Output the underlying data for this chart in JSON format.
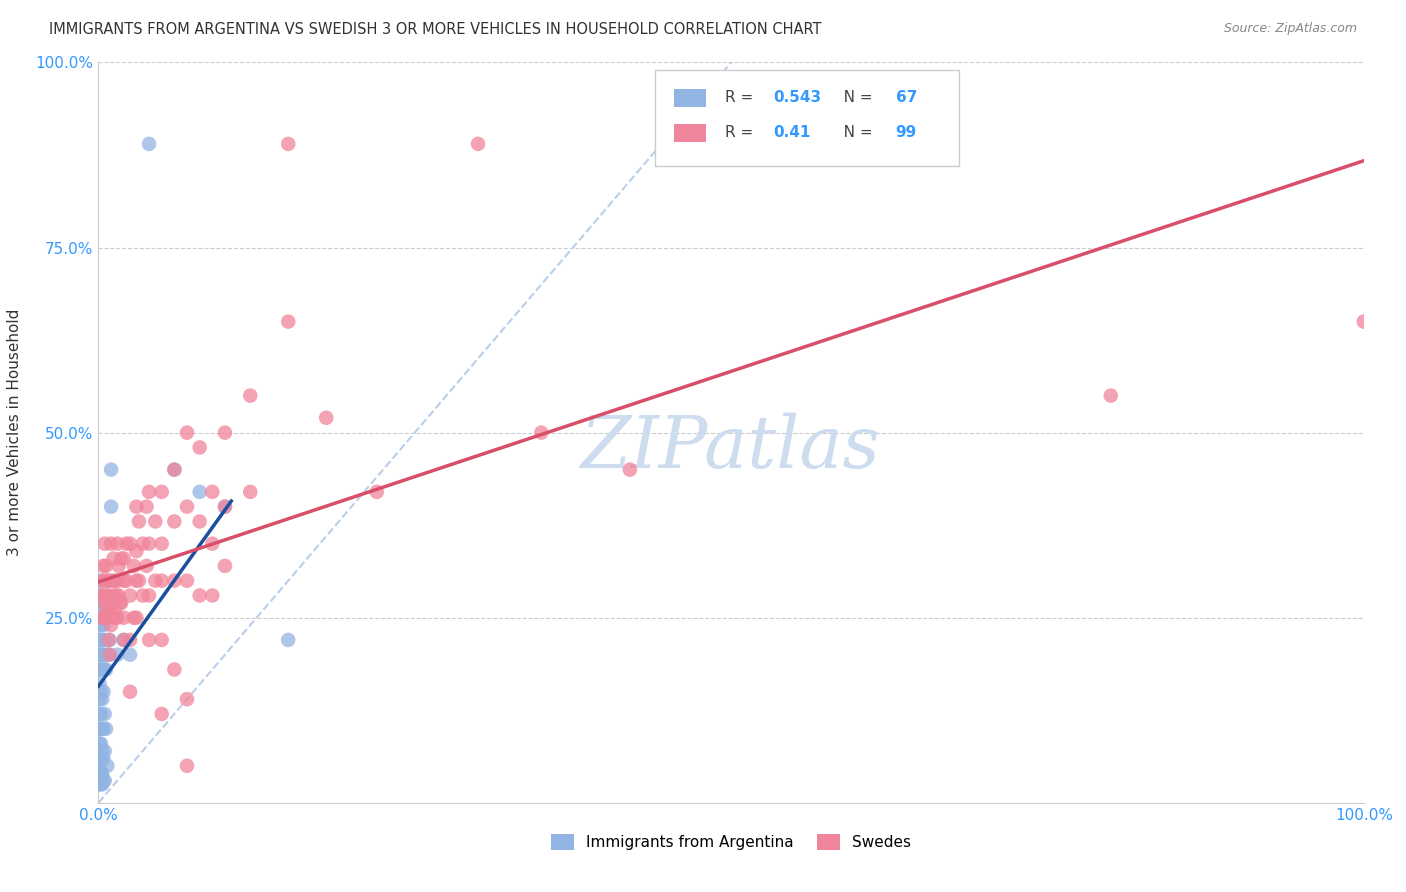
{
  "title": "IMMIGRANTS FROM ARGENTINA VS SWEDISH 3 OR MORE VEHICLES IN HOUSEHOLD CORRELATION CHART",
  "source": "Source: ZipAtlas.com",
  "ylabel": "3 or more Vehicles in Household",
  "xlim": [
    0,
    1.0
  ],
  "ylim": [
    0,
    1.0
  ],
  "argentina_R": 0.543,
  "argentina_N": 67,
  "swedes_R": 0.41,
  "swedes_N": 99,
  "argentina_color": "#92b4e3",
  "swedes_color": "#f0849a",
  "argentina_regression_color": "#1a4fa0",
  "swedes_regression_color": "#d94f6a",
  "diagonal_color": "#b8cfe8",
  "watermark_color": "#cddcee",
  "background_color": "#ffffff",
  "argentina_points": [
    [
      0.0008,
      0.3
    ],
    [
      0.001,
      0.27
    ],
    [
      0.001,
      0.25
    ],
    [
      0.001,
      0.22
    ],
    [
      0.001,
      0.2
    ],
    [
      0.001,
      0.18
    ],
    [
      0.001,
      0.16
    ],
    [
      0.001,
      0.14
    ],
    [
      0.001,
      0.12
    ],
    [
      0.001,
      0.1
    ],
    [
      0.001,
      0.08
    ],
    [
      0.001,
      0.06
    ],
    [
      0.001,
      0.05
    ],
    [
      0.001,
      0.04
    ],
    [
      0.001,
      0.03
    ],
    [
      0.001,
      0.025
    ],
    [
      0.002,
      0.28
    ],
    [
      0.002,
      0.24
    ],
    [
      0.002,
      0.22
    ],
    [
      0.002,
      0.2
    ],
    [
      0.002,
      0.18
    ],
    [
      0.002,
      0.15
    ],
    [
      0.002,
      0.12
    ],
    [
      0.002,
      0.1
    ],
    [
      0.002,
      0.08
    ],
    [
      0.002,
      0.06
    ],
    [
      0.002,
      0.04
    ],
    [
      0.002,
      0.025
    ],
    [
      0.003,
      0.26
    ],
    [
      0.003,
      0.22
    ],
    [
      0.003,
      0.2
    ],
    [
      0.003,
      0.18
    ],
    [
      0.003,
      0.14
    ],
    [
      0.003,
      0.1
    ],
    [
      0.003,
      0.07
    ],
    [
      0.003,
      0.04
    ],
    [
      0.003,
      0.025
    ],
    [
      0.004,
      0.24
    ],
    [
      0.004,
      0.2
    ],
    [
      0.004,
      0.15
    ],
    [
      0.004,
      0.1
    ],
    [
      0.004,
      0.06
    ],
    [
      0.004,
      0.03
    ],
    [
      0.005,
      0.22
    ],
    [
      0.005,
      0.18
    ],
    [
      0.005,
      0.12
    ],
    [
      0.005,
      0.07
    ],
    [
      0.005,
      0.03
    ],
    [
      0.006,
      0.25
    ],
    [
      0.006,
      0.18
    ],
    [
      0.006,
      0.1
    ],
    [
      0.007,
      0.2
    ],
    [
      0.007,
      0.05
    ],
    [
      0.008,
      0.3
    ],
    [
      0.008,
      0.2
    ],
    [
      0.009,
      0.22
    ],
    [
      0.01,
      0.45
    ],
    [
      0.01,
      0.4
    ],
    [
      0.012,
      0.3
    ],
    [
      0.015,
      0.2
    ],
    [
      0.02,
      0.22
    ],
    [
      0.025,
      0.2
    ],
    [
      0.04,
      0.89
    ],
    [
      0.06,
      0.45
    ],
    [
      0.08,
      0.42
    ],
    [
      0.1,
      0.4
    ],
    [
      0.15,
      0.22
    ]
  ],
  "swedes_points": [
    [
      0.002,
      0.28
    ],
    [
      0.003,
      0.3
    ],
    [
      0.003,
      0.25
    ],
    [
      0.004,
      0.32
    ],
    [
      0.004,
      0.28
    ],
    [
      0.004,
      0.25
    ],
    [
      0.005,
      0.35
    ],
    [
      0.005,
      0.3
    ],
    [
      0.005,
      0.27
    ],
    [
      0.005,
      0.25
    ],
    [
      0.006,
      0.32
    ],
    [
      0.006,
      0.28
    ],
    [
      0.007,
      0.3
    ],
    [
      0.007,
      0.26
    ],
    [
      0.008,
      0.28
    ],
    [
      0.008,
      0.22
    ],
    [
      0.009,
      0.26
    ],
    [
      0.009,
      0.2
    ],
    [
      0.01,
      0.35
    ],
    [
      0.01,
      0.3
    ],
    [
      0.01,
      0.27
    ],
    [
      0.01,
      0.24
    ],
    [
      0.012,
      0.33
    ],
    [
      0.012,
      0.28
    ],
    [
      0.012,
      0.25
    ],
    [
      0.013,
      0.3
    ],
    [
      0.013,
      0.26
    ],
    [
      0.014,
      0.28
    ],
    [
      0.015,
      0.35
    ],
    [
      0.015,
      0.3
    ],
    [
      0.015,
      0.25
    ],
    [
      0.016,
      0.32
    ],
    [
      0.016,
      0.28
    ],
    [
      0.017,
      0.27
    ],
    [
      0.018,
      0.33
    ],
    [
      0.018,
      0.27
    ],
    [
      0.02,
      0.33
    ],
    [
      0.02,
      0.3
    ],
    [
      0.02,
      0.25
    ],
    [
      0.02,
      0.22
    ],
    [
      0.022,
      0.35
    ],
    [
      0.022,
      0.3
    ],
    [
      0.025,
      0.35
    ],
    [
      0.025,
      0.28
    ],
    [
      0.025,
      0.22
    ],
    [
      0.025,
      0.15
    ],
    [
      0.028,
      0.32
    ],
    [
      0.028,
      0.25
    ],
    [
      0.03,
      0.4
    ],
    [
      0.03,
      0.34
    ],
    [
      0.03,
      0.3
    ],
    [
      0.03,
      0.25
    ],
    [
      0.032,
      0.38
    ],
    [
      0.032,
      0.3
    ],
    [
      0.035,
      0.35
    ],
    [
      0.035,
      0.28
    ],
    [
      0.038,
      0.4
    ],
    [
      0.038,
      0.32
    ],
    [
      0.04,
      0.42
    ],
    [
      0.04,
      0.35
    ],
    [
      0.04,
      0.28
    ],
    [
      0.04,
      0.22
    ],
    [
      0.045,
      0.38
    ],
    [
      0.045,
      0.3
    ],
    [
      0.05,
      0.42
    ],
    [
      0.05,
      0.35
    ],
    [
      0.05,
      0.3
    ],
    [
      0.05,
      0.22
    ],
    [
      0.05,
      0.12
    ],
    [
      0.06,
      0.45
    ],
    [
      0.06,
      0.38
    ],
    [
      0.06,
      0.3
    ],
    [
      0.06,
      0.18
    ],
    [
      0.07,
      0.5
    ],
    [
      0.07,
      0.4
    ],
    [
      0.07,
      0.3
    ],
    [
      0.07,
      0.14
    ],
    [
      0.07,
      0.05
    ],
    [
      0.08,
      0.48
    ],
    [
      0.08,
      0.38
    ],
    [
      0.08,
      0.28
    ],
    [
      0.09,
      0.42
    ],
    [
      0.09,
      0.35
    ],
    [
      0.09,
      0.28
    ],
    [
      0.1,
      0.5
    ],
    [
      0.1,
      0.4
    ],
    [
      0.1,
      0.32
    ],
    [
      0.12,
      0.55
    ],
    [
      0.12,
      0.42
    ],
    [
      0.15,
      0.89
    ],
    [
      0.15,
      0.65
    ],
    [
      0.18,
      0.52
    ],
    [
      0.22,
      0.42
    ],
    [
      0.3,
      0.89
    ],
    [
      0.35,
      0.5
    ],
    [
      0.42,
      0.45
    ],
    [
      0.65,
      0.89
    ],
    [
      0.8,
      0.55
    ],
    [
      1.0,
      0.65
    ]
  ]
}
